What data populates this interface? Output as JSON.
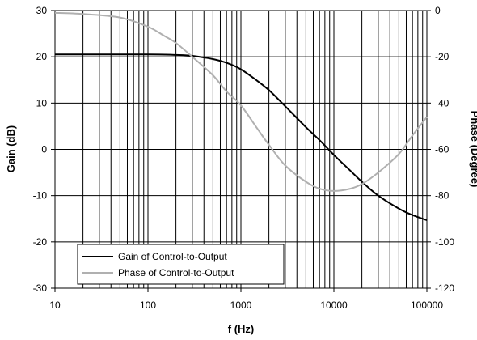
{
  "chart_data": {
    "type": "line",
    "xlabel": "f (Hz)",
    "ylabel": "Gain (dB)",
    "y2label": "Phase (Degree)",
    "x_scale": "log",
    "xlim": [
      10,
      100000
    ],
    "ylim": [
      -30,
      30
    ],
    "y2lim": [
      -120,
      0
    ],
    "x_ticks": [
      "10",
      "100",
      "1000",
      "10000",
      "100000"
    ],
    "y_ticks": [
      "-30",
      "-20",
      "-10",
      "0",
      "10",
      "20",
      "30"
    ],
    "y2_ticks": [
      "-120",
      "-100",
      "-80",
      "-60",
      "-40",
      "-20",
      "0"
    ],
    "grid": "vertical log grid",
    "legend_position": "lower-left",
    "series": [
      {
        "name": "Gain of Control-to-Output",
        "axis": "left",
        "color": "#000000",
        "points": [
          [
            10,
            20.5
          ],
          [
            100,
            20.5
          ],
          [
            200,
            20.4
          ],
          [
            300,
            20.2
          ],
          [
            500,
            19.5
          ],
          [
            700,
            18.7
          ],
          [
            1000,
            17.3
          ],
          [
            1500,
            14.8
          ],
          [
            2000,
            12.8
          ],
          [
            3000,
            9.3
          ],
          [
            5000,
            4.8
          ],
          [
            7000,
            2.0
          ],
          [
            10000,
            -1.2
          ],
          [
            15000,
            -4.6
          ],
          [
            20000,
            -7.0
          ],
          [
            30000,
            -10.0
          ],
          [
            50000,
            -12.8
          ],
          [
            70000,
            -14.2
          ],
          [
            100000,
            -15.3
          ]
        ]
      },
      {
        "name": "Phase of Control-to-Output",
        "axis": "right",
        "color": "#b0b0b0",
        "points": [
          [
            10,
            -1
          ],
          [
            20,
            -1.5
          ],
          [
            50,
            -3
          ],
          [
            100,
            -7
          ],
          [
            150,
            -11
          ],
          [
            200,
            -14
          ],
          [
            300,
            -20
          ],
          [
            500,
            -28
          ],
          [
            700,
            -35
          ],
          [
            1000,
            -41
          ],
          [
            1500,
            -51
          ],
          [
            2000,
            -58
          ],
          [
            3000,
            -67
          ],
          [
            5000,
            -74
          ],
          [
            7000,
            -77
          ],
          [
            10000,
            -78
          ],
          [
            15000,
            -77
          ],
          [
            20000,
            -75
          ],
          [
            30000,
            -70
          ],
          [
            50000,
            -62
          ],
          [
            70000,
            -54
          ],
          [
            100000,
            -46
          ]
        ]
      }
    ]
  }
}
